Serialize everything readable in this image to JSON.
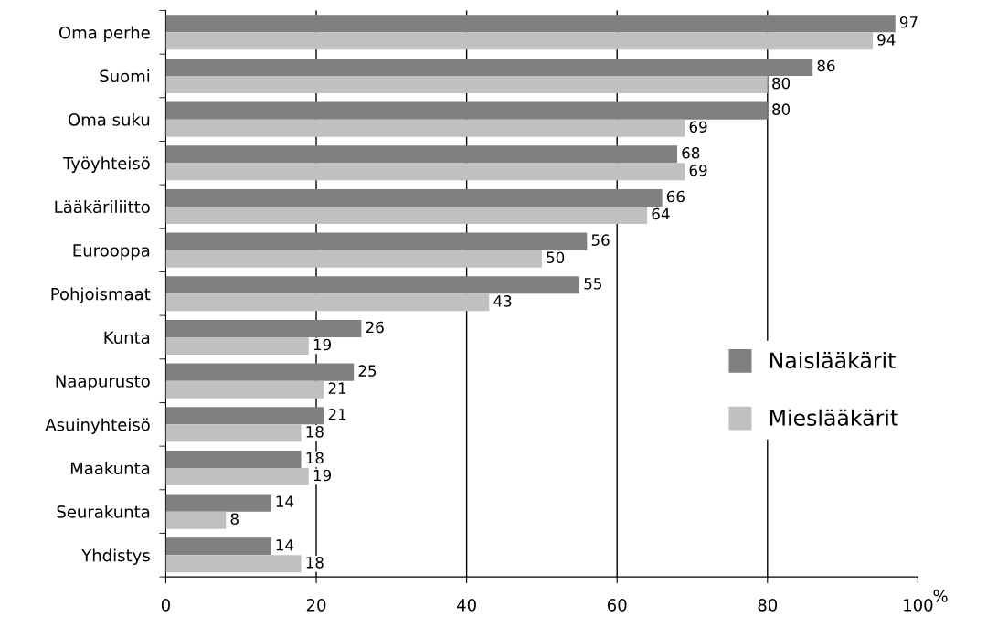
{
  "chart_data": {
    "type": "bar",
    "orientation": "horizontal",
    "categories": [
      "Oma perhe",
      "Suomi",
      "Oma suku",
      "Työyhteisö",
      "Lääkäriliitto",
      "Eurooppa",
      "Pohjoismaat",
      "Kunta",
      "Naapurusto",
      "Asuinyhteisö",
      "Maakunta",
      "Seurakunta",
      "Yhdistys"
    ],
    "series": [
      {
        "name": "Naislääkärit",
        "color": "#808080",
        "values": [
          97,
          86,
          80,
          68,
          66,
          56,
          55,
          26,
          25,
          21,
          18,
          14,
          14
        ]
      },
      {
        "name": "Mieslääkärit",
        "color": "#c0c0c0",
        "values": [
          94,
          80,
          69,
          69,
          64,
          50,
          43,
          19,
          21,
          18,
          19,
          8,
          18
        ]
      }
    ],
    "xlim": [
      0,
      100
    ],
    "xticks": [
      0,
      20,
      40,
      60,
      80,
      100
    ],
    "xlabel": "%",
    "grid": "x",
    "legend": "center right",
    "data_labels": true
  }
}
